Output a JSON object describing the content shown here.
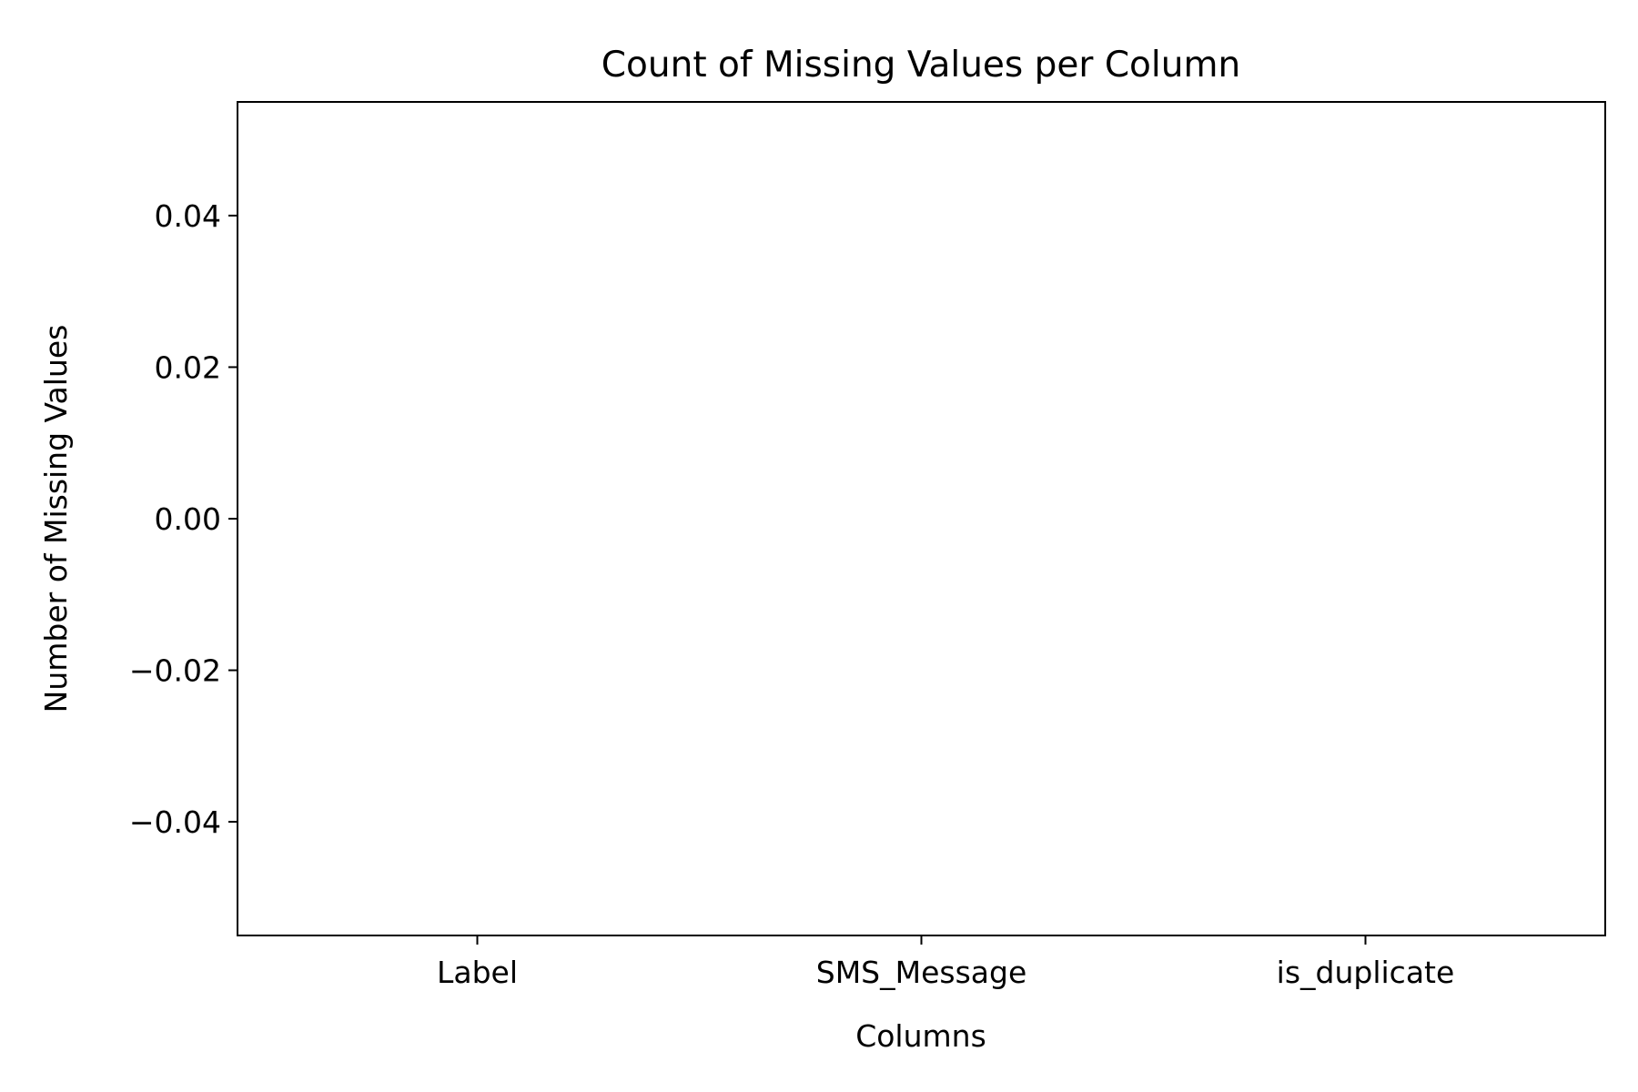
{
  "chart_data": {
    "type": "bar",
    "title": "Count of Missing Values per Column",
    "xlabel": "Columns",
    "ylabel": "Number of Missing Values",
    "categories": [
      "Label",
      "SMS_Message",
      "is_duplicate"
    ],
    "values": [
      0,
      0,
      0
    ],
    "ylim": [
      -0.055,
      0.055
    ],
    "yticks": [
      -0.04,
      -0.02,
      0.0,
      0.02,
      0.04
    ],
    "ytick_labels": [
      "−0.04",
      "−0.02",
      "0.00",
      "0.02",
      "0.04"
    ],
    "grid": false,
    "legend": "none",
    "bar_color": "#1f77b4"
  }
}
